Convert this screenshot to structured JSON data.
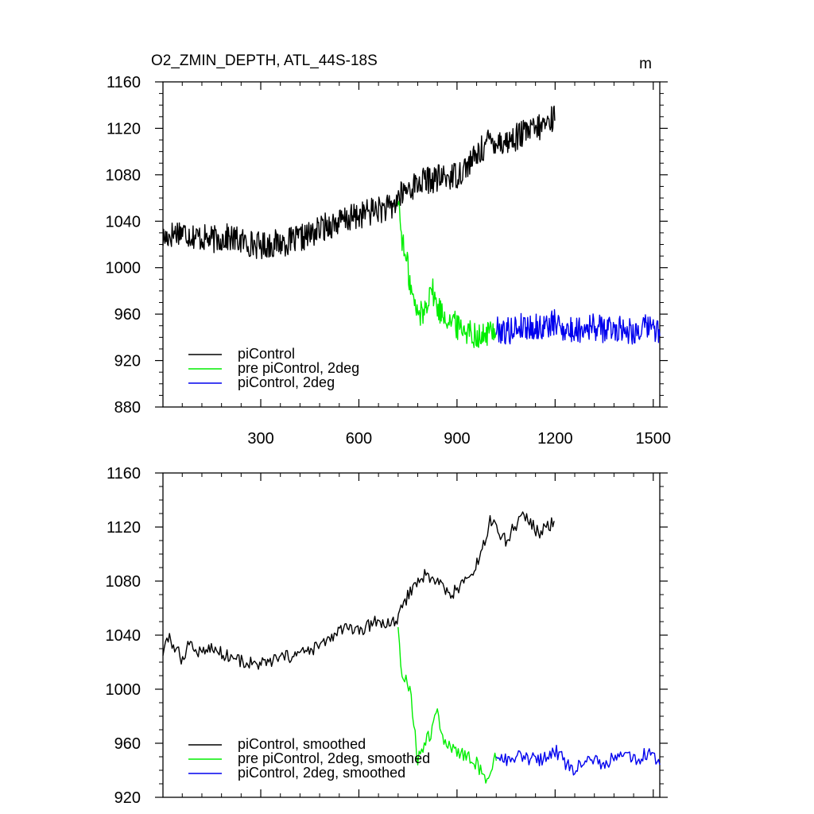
{
  "figure": {
    "title": "O2_ZMIN_DEPTH, ATL_44S-18S",
    "units": "m"
  },
  "colors": {
    "piControl": "#000000",
    "pre_piControl_2deg": "#00ee00",
    "piControl_2deg": "#0000ee"
  },
  "chart_data": [
    {
      "type": "line",
      "panel": "raw",
      "title": "O2_ZMIN_DEPTH, ATL_44S-18S",
      "units": "m",
      "xlim": [
        1,
        1520
      ],
      "ylim": [
        880,
        1160
      ],
      "xticks": [
        300,
        600,
        900,
        1200,
        1500
      ],
      "xtick_labels": [
        "300",
        "600",
        "900",
        "1200",
        "1500"
      ],
      "yticks": [
        880,
        920,
        960,
        1000,
        1040,
        1080,
        1120,
        1160
      ],
      "ytick_labels": [
        "880",
        "920",
        "960",
        "1000",
        "1040",
        "1080",
        "1120",
        "1160"
      ],
      "legend_position": "bottom-left",
      "series": [
        {
          "name": "piControl",
          "color": "#000000",
          "x": [
            1,
            50,
            100,
            150,
            200,
            250,
            300,
            350,
            400,
            450,
            500,
            550,
            600,
            650,
            700,
            720,
            750,
            800,
            850,
            900,
            950,
            1000,
            1050,
            1100,
            1150,
            1200
          ],
          "y": [
            1025,
            1032,
            1027,
            1024,
            1026,
            1022,
            1019,
            1021,
            1023,
            1028,
            1036,
            1040,
            1045,
            1050,
            1051,
            1060,
            1068,
            1075,
            1077,
            1080,
            1093,
            1110,
            1108,
            1115,
            1120,
            1130
          ]
        },
        {
          "name": "pre piControl, 2deg",
          "color": "#00ee00",
          "x": [
            720,
            730,
            740,
            750,
            760,
            770,
            780,
            800,
            820,
            840,
            860,
            880,
            900,
            920,
            940,
            960,
            980,
            1000,
            1020
          ],
          "y": [
            1060,
            1030,
            1010,
            1000,
            980,
            968,
            960,
            962,
            985,
            965,
            960,
            955,
            950,
            948,
            945,
            942,
            940,
            945,
            948
          ]
        },
        {
          "name": "piControl, 2deg",
          "color": "#0000ee",
          "x": [
            1020,
            1050,
            1100,
            1150,
            1200,
            1250,
            1300,
            1350,
            1400,
            1450,
            1500,
            1520
          ],
          "y": [
            948,
            945,
            950,
            948,
            952,
            945,
            950,
            947,
            948,
            945,
            950,
            942
          ]
        }
      ]
    },
    {
      "type": "line",
      "panel": "smoothed",
      "xlim": [
        1,
        1520
      ],
      "ylim": [
        920,
        1160
      ],
      "yticks": [
        920,
        960,
        1000,
        1040,
        1080,
        1120,
        1160
      ],
      "ytick_labels": [
        "920",
        "960",
        "1000",
        "1040",
        "1080",
        "1120",
        "1160"
      ],
      "xticks": [
        300,
        600,
        900,
        1200,
        1500
      ],
      "legend_position": "bottom-left",
      "series": [
        {
          "name": "piControl, smoothed",
          "color": "#000000",
          "x": [
            1,
            20,
            40,
            60,
            80,
            100,
            150,
            200,
            250,
            300,
            350,
            400,
            450,
            500,
            550,
            600,
            650,
            700,
            720,
            750,
            800,
            850,
            880,
            900,
            950,
            980,
            1000,
            1050,
            1100,
            1150,
            1200
          ],
          "y": [
            1027,
            1038,
            1030,
            1022,
            1035,
            1028,
            1030,
            1025,
            1020,
            1018,
            1022,
            1025,
            1028,
            1035,
            1045,
            1042,
            1050,
            1048,
            1052,
            1070,
            1085,
            1078,
            1068,
            1075,
            1085,
            1105,
            1125,
            1110,
            1130,
            1115,
            1125
          ]
        },
        {
          "name": "pre piControl, 2deg, smoothed",
          "color": "#00ee00",
          "x": [
            720,
            730,
            740,
            760,
            770,
            780,
            800,
            810,
            820,
            840,
            860,
            880,
            900,
            920,
            940,
            960,
            980,
            1000,
            1020
          ],
          "y": [
            1048,
            1015,
            1010,
            995,
            970,
            948,
            958,
            968,
            965,
            985,
            960,
            958,
            955,
            952,
            948,
            945,
            935,
            935,
            952
          ]
        },
        {
          "name": "piControl, 2deg, smoothed",
          "color": "#0000ee",
          "x": [
            1020,
            1050,
            1100,
            1150,
            1200,
            1250,
            1300,
            1350,
            1400,
            1450,
            1500,
            1520
          ],
          "y": [
            952,
            948,
            950,
            947,
            955,
            940,
            950,
            945,
            952,
            948,
            955,
            940
          ]
        }
      ]
    }
  ]
}
